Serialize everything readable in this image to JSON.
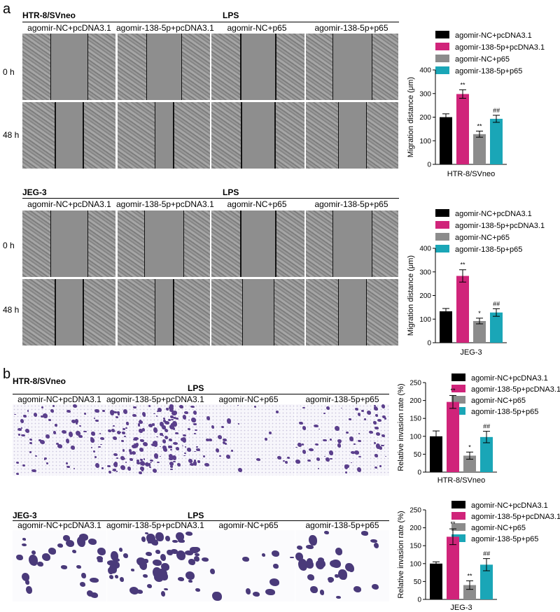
{
  "panel_a_letter": "a",
  "panel_b_letter": "b",
  "lps_label": "LPS",
  "time_0": "0 h",
  "time_48": "48 h",
  "groups": [
    "agomir-NC+pcDNA3.1",
    "agomir-138-5p+pcDNA3.1",
    "agomir-NC+p65",
    "agomir-138-5p+p65"
  ],
  "cells": {
    "htr": "HTR-8/SVneo",
    "jeg": "JEG-3"
  },
  "colors": {
    "g1": "#000000",
    "g2": "#d0247a",
    "g3": "#8c8c8c",
    "g4": "#1aa6b7"
  },
  "chart_data": [
    {
      "type": "bar",
      "cell": "HTR-8/SVneo",
      "ylabel": "Migration distance (μm)",
      "ylim": [
        0,
        400
      ],
      "yticks": [
        0,
        100,
        200,
        300,
        400
      ],
      "xlabel": "HTR-8/SVneo",
      "series": [
        {
          "name": "agomir-NC+pcDNA3.1",
          "value": 200,
          "err": 14,
          "mark": ""
        },
        {
          "name": "agomir-138-5p+pcDNA3.1",
          "value": 298,
          "err": 18,
          "mark": "**"
        },
        {
          "name": "agomir-NC+p65",
          "value": 128,
          "err": 13,
          "mark": "**"
        },
        {
          "name": "agomir-138-5p+p65",
          "value": 193,
          "err": 15,
          "mark": "##"
        }
      ]
    },
    {
      "type": "bar",
      "cell": "JEG-3",
      "ylabel": "Migration distance (μm)",
      "ylim": [
        0,
        400
      ],
      "yticks": [
        0,
        100,
        200,
        300,
        400
      ],
      "xlabel": "JEG-3",
      "series": [
        {
          "name": "agomir-NC+pcDNA3.1",
          "value": 133,
          "err": 12,
          "mark": ""
        },
        {
          "name": "agomir-138-5p+pcDNA3.1",
          "value": 283,
          "err": 26,
          "mark": "**"
        },
        {
          "name": "agomir-NC+p65",
          "value": 92,
          "err": 12,
          "mark": "*"
        },
        {
          "name": "agomir-138-5p+p65",
          "value": 128,
          "err": 16,
          "mark": "##"
        }
      ]
    },
    {
      "type": "bar",
      "cell": "HTR-8/SVneo",
      "ylabel": "Relative invasion rate (%)",
      "ylim": [
        0,
        250
      ],
      "yticks": [
        0,
        50,
        100,
        150,
        200,
        250
      ],
      "xlabel": "HTR-8/SVneo",
      "series": [
        {
          "name": "agomir-NC+pcDNA3.1",
          "value": 100,
          "err": 15,
          "mark": ""
        },
        {
          "name": "agomir-138-5p+pcDNA3.1",
          "value": 196,
          "err": 18,
          "mark": "**"
        },
        {
          "name": "agomir-NC+p65",
          "value": 46,
          "err": 10,
          "mark": "*"
        },
        {
          "name": "agomir-138-5p+p65",
          "value": 98,
          "err": 16,
          "mark": "##"
        }
      ]
    },
    {
      "type": "bar",
      "cell": "JEG-3",
      "ylabel": "Relative invasion rate (%)",
      "ylim": [
        0,
        250
      ],
      "yticks": [
        0,
        50,
        100,
        150,
        200,
        250
      ],
      "xlabel": "JEG-3",
      "series": [
        {
          "name": "agomir-NC+pcDNA3.1",
          "value": 100,
          "err": 5,
          "mark": ""
        },
        {
          "name": "agomir-138-5p+pcDNA3.1",
          "value": 175,
          "err": 22,
          "mark": "**"
        },
        {
          "name": "agomir-NC+p65",
          "value": 40,
          "err": 12,
          "mark": "**"
        },
        {
          "name": "agomir-138-5p+p65",
          "value": 97,
          "err": 17,
          "mark": "##"
        }
      ]
    }
  ]
}
